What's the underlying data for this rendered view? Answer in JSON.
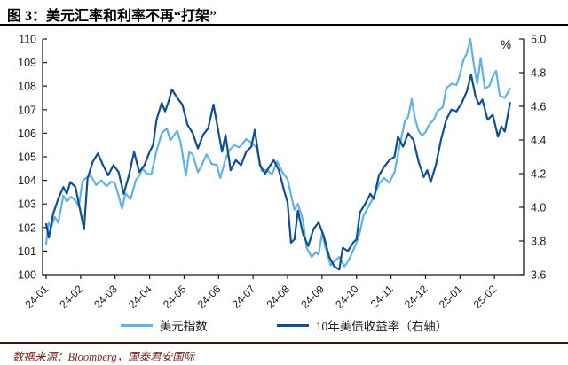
{
  "header": {
    "title": "图 3：美元汇率和利率不再“打架”"
  },
  "footer": {
    "source": "数据来源：Bloomberg，国泰君安国际"
  },
  "chart_data": {
    "type": "line",
    "title": "美元汇率和利率不再“打架”",
    "grid": false,
    "legend_position": "bottom",
    "x_tick_labels": [
      "24-01",
      "24-02",
      "24-03",
      "24-04",
      "24-05",
      "24-06",
      "24-07",
      "24-08",
      "24-09",
      "24-10",
      "24-11",
      "24-12",
      "25-01",
      "25-02"
    ],
    "left_axis": {
      "ticks": [
        "100",
        "101",
        "102",
        "103",
        "104",
        "105",
        "106",
        "107",
        "108",
        "109",
        "110"
      ],
      "range": [
        100,
        110
      ]
    },
    "right_axis": {
      "ticks": [
        "3.6",
        "3.8",
        "4.0",
        "4.2",
        "4.4",
        "4.6",
        "4.8",
        "5.0"
      ],
      "range": [
        3.6,
        5.0
      ],
      "unit_label": "%"
    },
    "axis_color": "#1a1a1a",
    "series": [
      {
        "name": "美元指数",
        "axis": "left",
        "color": "#5fb3e4",
        "points": [
          [
            0,
            101.3
          ],
          [
            0.07,
            102.2
          ],
          [
            0.15,
            102.0
          ],
          [
            0.25,
            102.45
          ],
          [
            0.35,
            102.2
          ],
          [
            0.5,
            103.35
          ],
          [
            0.6,
            103.1
          ],
          [
            0.72,
            103.3
          ],
          [
            0.85,
            103.15
          ],
          [
            0.95,
            102.9
          ],
          [
            1.05,
            103.95
          ],
          [
            1.15,
            104.1
          ],
          [
            1.3,
            104.2
          ],
          [
            1.45,
            103.8
          ],
          [
            1.6,
            104.0
          ],
          [
            1.75,
            103.75
          ],
          [
            1.9,
            103.95
          ],
          [
            2.0,
            103.85
          ],
          [
            2.1,
            103.35
          ],
          [
            2.2,
            102.8
          ],
          [
            2.3,
            103.45
          ],
          [
            2.45,
            103.2
          ],
          [
            2.6,
            104.0
          ],
          [
            2.7,
            104.2
          ],
          [
            2.8,
            104.5
          ],
          [
            2.9,
            104.3
          ],
          [
            3.05,
            104.25
          ],
          [
            3.2,
            105.25
          ],
          [
            3.35,
            106.0
          ],
          [
            3.5,
            106.2
          ],
          [
            3.6,
            105.7
          ],
          [
            3.7,
            105.9
          ],
          [
            3.8,
            106.1
          ],
          [
            3.9,
            105.6
          ],
          [
            4.05,
            104.2
          ],
          [
            4.15,
            105.2
          ],
          [
            4.25,
            105.1
          ],
          [
            4.4,
            104.35
          ],
          [
            4.5,
            104.6
          ],
          [
            4.65,
            105.1
          ],
          [
            4.8,
            104.7
          ],
          [
            4.95,
            104.65
          ],
          [
            5.05,
            104.1
          ],
          [
            5.2,
            104.9
          ],
          [
            5.3,
            105.25
          ],
          [
            5.45,
            105.5
          ],
          [
            5.6,
            105.4
          ],
          [
            5.8,
            105.75
          ],
          [
            5.95,
            105.6
          ],
          [
            6.1,
            105.4
          ],
          [
            6.25,
            104.4
          ],
          [
            6.4,
            104.45
          ],
          [
            6.55,
            104.25
          ],
          [
            6.7,
            104.8
          ],
          [
            6.85,
            104.35
          ],
          [
            7.0,
            104.05
          ],
          [
            7.1,
            103.4
          ],
          [
            7.2,
            102.75
          ],
          [
            7.3,
            103.0
          ],
          [
            7.45,
            102.3
          ],
          [
            7.55,
            101.15
          ],
          [
            7.7,
            100.75
          ],
          [
            7.82,
            100.95
          ],
          [
            7.9,
            100.85
          ],
          [
            8.0,
            101.75
          ],
          [
            8.1,
            101.15
          ],
          [
            8.25,
            100.4
          ],
          [
            8.35,
            100.55
          ],
          [
            8.5,
            100.75
          ],
          [
            8.65,
            100.35
          ],
          [
            8.75,
            100.55
          ],
          [
            8.85,
            100.85
          ],
          [
            9.0,
            101.35
          ],
          [
            9.1,
            101.8
          ],
          [
            9.2,
            102.5
          ],
          [
            9.35,
            102.9
          ],
          [
            9.5,
            103.3
          ],
          [
            9.65,
            103.85
          ],
          [
            9.8,
            104.1
          ],
          [
            9.95,
            103.9
          ],
          [
            10.1,
            104.35
          ],
          [
            10.25,
            105.45
          ],
          [
            10.4,
            106.5
          ],
          [
            10.5,
            106.7
          ],
          [
            10.6,
            107.45
          ],
          [
            10.7,
            106.6
          ],
          [
            10.8,
            106.1
          ],
          [
            10.9,
            105.9
          ],
          [
            11.0,
            106.05
          ],
          [
            11.1,
            106.35
          ],
          [
            11.25,
            106.6
          ],
          [
            11.35,
            106.95
          ],
          [
            11.5,
            107.1
          ],
          [
            11.6,
            107.9
          ],
          [
            11.75,
            108.1
          ],
          [
            11.9,
            108.05
          ],
          [
            12.0,
            108.5
          ],
          [
            12.1,
            109.1
          ],
          [
            12.2,
            109.4
          ],
          [
            12.3,
            110.0
          ],
          [
            12.4,
            108.9
          ],
          [
            12.5,
            108.1
          ],
          [
            12.6,
            109.2
          ],
          [
            12.72,
            107.9
          ],
          [
            12.85,
            108.0
          ],
          [
            12.95,
            108.4
          ],
          [
            13.05,
            108.65
          ],
          [
            13.15,
            107.6
          ],
          [
            13.3,
            107.5
          ],
          [
            13.45,
            107.9
          ]
        ]
      },
      {
        "name": "10年美债收益率（右轴）",
        "axis": "right",
        "color": "#0f4e95",
        "points": [
          [
            0,
            3.9
          ],
          [
            0.08,
            3.82
          ],
          [
            0.2,
            3.96
          ],
          [
            0.35,
            4.05
          ],
          [
            0.5,
            4.12
          ],
          [
            0.6,
            4.08
          ],
          [
            0.7,
            4.15
          ],
          [
            0.85,
            4.12
          ],
          [
            0.95,
            4.02
          ],
          [
            1.1,
            3.87
          ],
          [
            1.2,
            4.17
          ],
          [
            1.35,
            4.27
          ],
          [
            1.5,
            4.32
          ],
          [
            1.65,
            4.25
          ],
          [
            1.8,
            4.19
          ],
          [
            1.95,
            4.25
          ],
          [
            2.1,
            4.21
          ],
          [
            2.25,
            4.08
          ],
          [
            2.4,
            4.19
          ],
          [
            2.55,
            4.33
          ],
          [
            2.7,
            4.21
          ],
          [
            2.85,
            4.25
          ],
          [
            3.0,
            4.33
          ],
          [
            3.1,
            4.37
          ],
          [
            3.2,
            4.52
          ],
          [
            3.35,
            4.62
          ],
          [
            3.45,
            4.57
          ],
          [
            3.55,
            4.63
          ],
          [
            3.65,
            4.7
          ],
          [
            3.8,
            4.65
          ],
          [
            3.95,
            4.61
          ],
          [
            4.1,
            4.49
          ],
          [
            4.25,
            4.44
          ],
          [
            4.4,
            4.35
          ],
          [
            4.55,
            4.43
          ],
          [
            4.7,
            4.47
          ],
          [
            4.85,
            4.61
          ],
          [
            4.95,
            4.5
          ],
          [
            5.1,
            4.33
          ],
          [
            5.2,
            4.43
          ],
          [
            5.35,
            4.22
          ],
          [
            5.5,
            4.28
          ],
          [
            5.65,
            4.25
          ],
          [
            5.8,
            4.33
          ],
          [
            5.95,
            4.36
          ],
          [
            6.05,
            4.46
          ],
          [
            6.2,
            4.25
          ],
          [
            6.35,
            4.2
          ],
          [
            6.5,
            4.25
          ],
          [
            6.6,
            4.28
          ],
          [
            6.75,
            4.22
          ],
          [
            6.9,
            4.1
          ],
          [
            7.0,
            4.03
          ],
          [
            7.1,
            3.79
          ],
          [
            7.2,
            3.81
          ],
          [
            7.3,
            3.98
          ],
          [
            7.45,
            3.84
          ],
          [
            7.6,
            3.77
          ],
          [
            7.75,
            3.87
          ],
          [
            7.9,
            3.91
          ],
          [
            8.05,
            3.83
          ],
          [
            8.2,
            3.71
          ],
          [
            8.35,
            3.65
          ],
          [
            8.5,
            3.63
          ],
          [
            8.6,
            3.76
          ],
          [
            8.75,
            3.74
          ],
          [
            8.9,
            3.79
          ],
          [
            9.0,
            3.81
          ],
          [
            9.1,
            3.97
          ],
          [
            9.25,
            4.02
          ],
          [
            9.4,
            4.08
          ],
          [
            9.5,
            4.05
          ],
          [
            9.65,
            4.19
          ],
          [
            9.8,
            4.24
          ],
          [
            9.95,
            4.28
          ],
          [
            10.1,
            4.3
          ],
          [
            10.2,
            4.42
          ],
          [
            10.35,
            4.36
          ],
          [
            10.5,
            4.44
          ],
          [
            10.65,
            4.4
          ],
          [
            10.8,
            4.27
          ],
          [
            10.95,
            4.18
          ],
          [
            11.05,
            4.22
          ],
          [
            11.15,
            4.15
          ],
          [
            11.3,
            4.25
          ],
          [
            11.45,
            4.4
          ],
          [
            11.6,
            4.52
          ],
          [
            11.75,
            4.58
          ],
          [
            11.9,
            4.57
          ],
          [
            12.05,
            4.62
          ],
          [
            12.2,
            4.69
          ],
          [
            12.32,
            4.79
          ],
          [
            12.45,
            4.66
          ],
          [
            12.55,
            4.61
          ],
          [
            12.65,
            4.64
          ],
          [
            12.8,
            4.52
          ],
          [
            12.95,
            4.55
          ],
          [
            13.1,
            4.42
          ],
          [
            13.2,
            4.48
          ],
          [
            13.3,
            4.45
          ],
          [
            13.45,
            4.62
          ]
        ]
      }
    ]
  }
}
